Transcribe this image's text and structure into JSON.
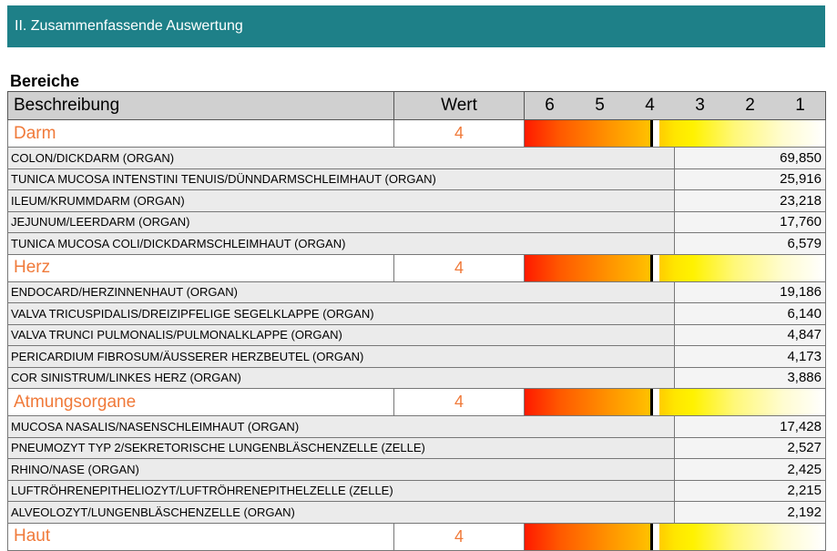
{
  "header": {
    "title": "II. Zusammenfassende Auswertung"
  },
  "section": {
    "title": "Bereiche"
  },
  "table": {
    "col_desc": "Beschreibung",
    "col_value": "Wert",
    "scale": [
      "6",
      "5",
      "4",
      "3",
      "2",
      "1"
    ],
    "groups": [
      {
        "name": "Darm",
        "value": "4",
        "level": 4,
        "items": [
          {
            "name": "COLON/DICKDARM (ORGAN)",
            "value": "69,850"
          },
          {
            "name": "TUNICA MUCOSA INTENSTINI TENUIS/DÜNNDARMSCHLEIMHAUT (ORGAN)",
            "value": "25,916"
          },
          {
            "name": "ILEUM/KRUMMDARM (ORGAN)",
            "value": "23,218"
          },
          {
            "name": "JEJUNUM/LEERDARM (ORGAN)",
            "value": "17,760"
          },
          {
            "name": "TUNICA MUCOSA COLI/DICKDARMSCHLEIMHAUT (ORGAN)",
            "value": "6,579"
          }
        ]
      },
      {
        "name": "Herz",
        "value": "4",
        "level": 4,
        "items": [
          {
            "name": "ENDOCARD/HERZINNENHAUT (ORGAN)",
            "value": "19,186"
          },
          {
            "name": "VALVA TRICUSPIDALIS/DREIZIPFELIGE SEGELKLAPPE (ORGAN)",
            "value": "6,140"
          },
          {
            "name": "VALVA TRUNCI PULMONALIS/PULMONALKLAPPE (ORGAN)",
            "value": "4,847"
          },
          {
            "name": "PERICARDIUM FIBROSUM/ÄUSSERER HERZBEUTEL (ORGAN)",
            "value": "4,173"
          },
          {
            "name": "COR SINISTRUM/LINKES HERZ (ORGAN)",
            "value": "3,886"
          }
        ]
      },
      {
        "name": "Atmungsorgane",
        "value": "4",
        "level": 4,
        "items": [
          {
            "name": "MUCOSA NASALIS/NASENSCHLEIMHAUT (ORGAN)",
            "value": "17,428"
          },
          {
            "name": "PNEUMOZYT TYP 2/SEKRETORISCHE LUNGENBLÄSCHENZELLE (ZELLE)",
            "value": "2,527"
          },
          {
            "name": "RHINO/NASE (ORGAN)",
            "value": "2,425"
          },
          {
            "name": "LUFTRÖHRENEPITHELIOZYT/LUFTRÖHRENEPITHELZELLE (ZELLE)",
            "value": "2,215"
          },
          {
            "name": "ALVEOLOZYT/LUNGENBLÄSCHENZELLE (ORGAN)",
            "value": "2,192"
          }
        ]
      },
      {
        "name": "Haut",
        "value": "4",
        "level": 4,
        "items": []
      }
    ]
  }
}
